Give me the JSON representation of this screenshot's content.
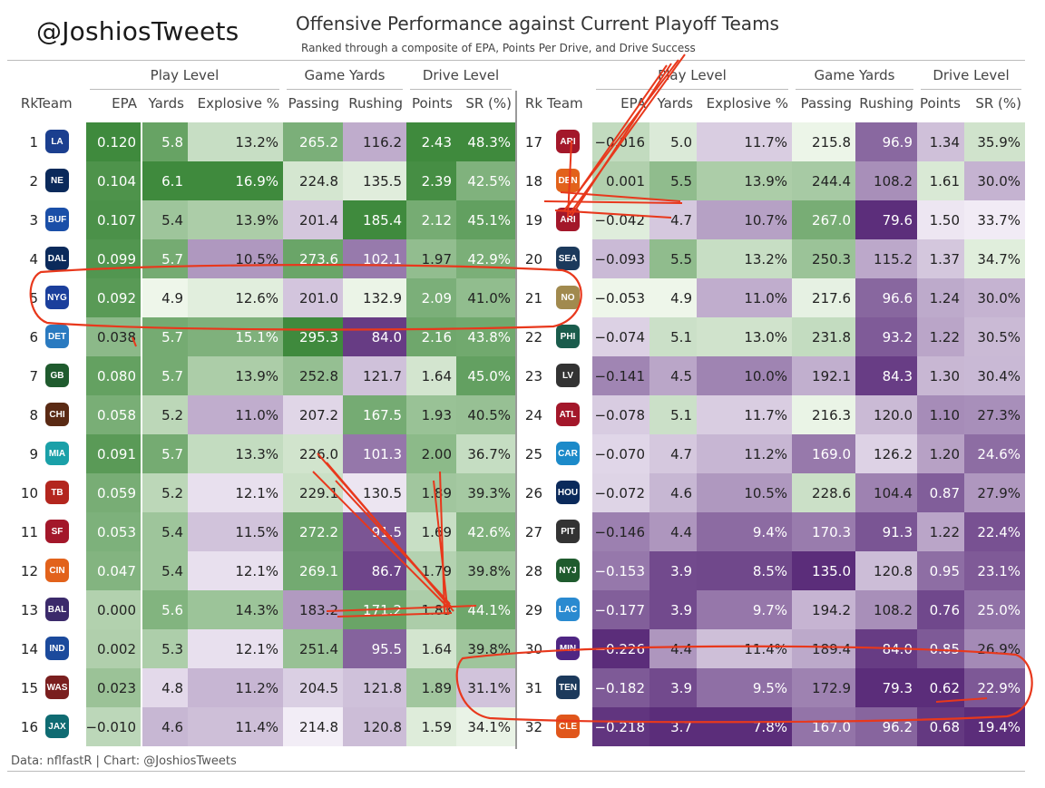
{
  "header": {
    "handle": "@JoshiosTweets",
    "title": "Offensive Performance against Current Playoff Teams",
    "subtitle": "Ranked through a composite of EPA, Points Per Drive, and Drive Success"
  },
  "footer": "Data: nflfastR | Chart: @JoshiosTweets",
  "colors": {
    "green_dark": "#3f8a3d",
    "green_light": "#eef6ea",
    "purple_dark": "#5b2d7a",
    "purple_light": "#f3eef7",
    "annotation": "#e8381c"
  },
  "chart_data": {
    "type": "table",
    "column_groups": [
      {
        "label": "Play Level",
        "columns": [
          "EPA",
          "Yards",
          "Explosive %"
        ]
      },
      {
        "label": "Game Yards",
        "columns": [
          "Passing",
          "Rushing"
        ]
      },
      {
        "label": "Drive Level",
        "columns": [
          "Points",
          "SR (%)"
        ]
      }
    ],
    "columns": [
      "Rk",
      "Team",
      "EPA",
      "Yards",
      "Explosive %",
      "Passing",
      "Rushing",
      "Points",
      "SR (%)"
    ],
    "rows": [
      {
        "rk": "1",
        "team": "LA",
        "epa": "0.120",
        "yards": "5.8",
        "explosive": "13.2%",
        "passing": "265.2",
        "rushing": "116.2",
        "points": "2.43",
        "sr": "48.3%"
      },
      {
        "rk": "2",
        "team": "NE",
        "epa": "0.104",
        "yards": "6.1",
        "explosive": "16.9%",
        "passing": "224.8",
        "rushing": "135.5",
        "points": "2.39",
        "sr": "42.5%"
      },
      {
        "rk": "3",
        "team": "BUF",
        "epa": "0.107",
        "yards": "5.4",
        "explosive": "13.9%",
        "passing": "201.4",
        "rushing": "185.4",
        "points": "2.12",
        "sr": "45.1%"
      },
      {
        "rk": "4",
        "team": "DAL",
        "epa": "0.099",
        "yards": "5.7",
        "explosive": "10.5%",
        "passing": "273.6",
        "rushing": "102.1",
        "points": "1.97",
        "sr": "42.9%"
      },
      {
        "rk": "5",
        "team": "NYG",
        "epa": "0.092",
        "yards": "4.9",
        "explosive": "12.6%",
        "passing": "201.0",
        "rushing": "132.9",
        "points": "2.09",
        "sr": "41.0%"
      },
      {
        "rk": "6",
        "team": "DET",
        "epa": "0.038",
        "yards": "5.7",
        "explosive": "15.1%",
        "passing": "295.3",
        "rushing": "84.0",
        "points": "2.16",
        "sr": "43.8%"
      },
      {
        "rk": "7",
        "team": "GB",
        "epa": "0.080",
        "yards": "5.7",
        "explosive": "13.9%",
        "passing": "252.8",
        "rushing": "121.7",
        "points": "1.64",
        "sr": "45.0%"
      },
      {
        "rk": "8",
        "team": "CHI",
        "epa": "0.058",
        "yards": "5.2",
        "explosive": "11.0%",
        "passing": "207.2",
        "rushing": "167.5",
        "points": "1.93",
        "sr": "40.5%"
      },
      {
        "rk": "9",
        "team": "MIA",
        "epa": "0.091",
        "yards": "5.7",
        "explosive": "13.3%",
        "passing": "226.0",
        "rushing": "101.3",
        "points": "2.00",
        "sr": "36.7%"
      },
      {
        "rk": "10",
        "team": "TB",
        "epa": "0.059",
        "yards": "5.2",
        "explosive": "12.1%",
        "passing": "229.1",
        "rushing": "130.5",
        "points": "1.89",
        "sr": "39.3%"
      },
      {
        "rk": "11",
        "team": "SF",
        "epa": "0.053",
        "yards": "5.4",
        "explosive": "11.5%",
        "passing": "272.2",
        "rushing": "91.5",
        "points": "1.69",
        "sr": "42.6%"
      },
      {
        "rk": "12",
        "team": "CIN",
        "epa": "0.047",
        "yards": "5.4",
        "explosive": "12.1%",
        "passing": "269.1",
        "rushing": "86.7",
        "points": "1.79",
        "sr": "39.8%"
      },
      {
        "rk": "13",
        "team": "BAL",
        "epa": "0.000",
        "yards": "5.6",
        "explosive": "14.3%",
        "passing": "183.2",
        "rushing": "171.2",
        "points": "1.83",
        "sr": "44.1%"
      },
      {
        "rk": "14",
        "team": "IND",
        "epa": "0.002",
        "yards": "5.3",
        "explosive": "12.1%",
        "passing": "251.4",
        "rushing": "95.5",
        "points": "1.64",
        "sr": "39.8%"
      },
      {
        "rk": "15",
        "team": "WAS",
        "epa": "0.023",
        "yards": "4.8",
        "explosive": "11.2%",
        "passing": "204.5",
        "rushing": "121.8",
        "points": "1.89",
        "sr": "31.1%"
      },
      {
        "rk": "16",
        "team": "JAX",
        "epa": "−0.010",
        "yards": "4.6",
        "explosive": "11.4%",
        "passing": "214.8",
        "rushing": "120.8",
        "points": "1.59",
        "sr": "34.1%"
      },
      {
        "rk": "17",
        "team": "ARI",
        "epa": "−0.016",
        "yards": "5.0",
        "explosive": "11.7%",
        "passing": "215.8",
        "rushing": "96.9",
        "points": "1.34",
        "sr": "35.9%"
      },
      {
        "rk": "18",
        "team": "DEN",
        "epa": "0.001",
        "yards": "5.5",
        "explosive": "13.9%",
        "passing": "244.4",
        "rushing": "108.2",
        "points": "1.61",
        "sr": "30.0%"
      },
      {
        "rk": "19",
        "team": "ARI",
        "epa": "−0.042",
        "yards": "4.7",
        "explosive": "10.7%",
        "passing": "267.0",
        "rushing": "79.6",
        "points": "1.50",
        "sr": "33.7%"
      },
      {
        "rk": "20",
        "team": "SEA",
        "epa": "−0.093",
        "yards": "5.5",
        "explosive": "13.2%",
        "passing": "250.3",
        "rushing": "115.2",
        "points": "1.37",
        "sr": "34.7%"
      },
      {
        "rk": "21",
        "team": "NO",
        "epa": "−0.053",
        "yards": "4.9",
        "explosive": "11.0%",
        "passing": "217.6",
        "rushing": "96.6",
        "points": "1.24",
        "sr": "30.0%"
      },
      {
        "rk": "22",
        "team": "PHI",
        "epa": "−0.074",
        "yards": "5.1",
        "explosive": "13.0%",
        "passing": "231.8",
        "rushing": "93.2",
        "points": "1.22",
        "sr": "30.5%"
      },
      {
        "rk": "23",
        "team": "LV",
        "epa": "−0.141",
        "yards": "4.5",
        "explosive": "10.0%",
        "passing": "192.1",
        "rushing": "84.3",
        "points": "1.30",
        "sr": "30.4%"
      },
      {
        "rk": "24",
        "team": "ATL",
        "epa": "−0.078",
        "yards": "5.1",
        "explosive": "11.7%",
        "passing": "216.3",
        "rushing": "120.0",
        "points": "1.10",
        "sr": "27.3%"
      },
      {
        "rk": "25",
        "team": "CAR",
        "epa": "−0.070",
        "yards": "4.7",
        "explosive": "11.2%",
        "passing": "169.0",
        "rushing": "126.2",
        "points": "1.20",
        "sr": "24.6%"
      },
      {
        "rk": "26",
        "team": "HOU",
        "epa": "−0.072",
        "yards": "4.6",
        "explosive": "10.5%",
        "passing": "228.6",
        "rushing": "104.4",
        "points": "0.87",
        "sr": "27.9%"
      },
      {
        "rk": "27",
        "team": "PIT",
        "epa": "−0.146",
        "yards": "4.4",
        "explosive": "9.4%",
        "passing": "170.3",
        "rushing": "91.3",
        "points": "1.22",
        "sr": "22.4%"
      },
      {
        "rk": "28",
        "team": "NYJ",
        "epa": "−0.153",
        "yards": "3.9",
        "explosive": "8.5%",
        "passing": "135.0",
        "rushing": "120.8",
        "points": "0.95",
        "sr": "23.1%"
      },
      {
        "rk": "29",
        "team": "LAC",
        "epa": "−0.177",
        "yards": "3.9",
        "explosive": "9.7%",
        "passing": "194.2",
        "rushing": "108.2",
        "points": "0.76",
        "sr": "25.0%"
      },
      {
        "rk": "30",
        "team": "MIN",
        "epa": "−0.226",
        "yards": "4.4",
        "explosive": "11.4%",
        "passing": "189.4",
        "rushing": "84.0",
        "points": "0.85",
        "sr": "26.9%"
      },
      {
        "rk": "31",
        "team": "TEN",
        "epa": "−0.182",
        "yards": "3.9",
        "explosive": "9.5%",
        "passing": "172.9",
        "rushing": "79.3",
        "points": "0.62",
        "sr": "22.9%"
      },
      {
        "rk": "32",
        "team": "CLE",
        "epa": "−0.218",
        "yards": "3.7",
        "explosive": "7.8%",
        "passing": "167.0",
        "rushing": "96.2",
        "points": "0.68",
        "sr": "19.4%"
      }
    ],
    "team_logo_icons": {
      "LA": {
        "icon": "rams-horn-icon",
        "color": "#1b3f8f"
      },
      "NE": {
        "icon": "patriots-icon",
        "color": "#0b2a5b"
      },
      "BUF": {
        "icon": "bills-buffalo-icon",
        "color": "#1a4fa8"
      },
      "DAL": {
        "icon": "cowboys-star-icon",
        "color": "#0b2a5b"
      },
      "NYG": {
        "icon": "giants-ny-icon",
        "color": "#1b3f9c"
      },
      "DET": {
        "icon": "lions-icon",
        "color": "#2a7ac0"
      },
      "GB": {
        "icon": "packers-g-icon",
        "color": "#1f5b2e"
      },
      "CHI": {
        "icon": "bears-icon",
        "color": "#5a2a14"
      },
      "MIA": {
        "icon": "dolphins-icon",
        "color": "#1aa0a8"
      },
      "TB": {
        "icon": "buccaneers-flag-icon",
        "color": "#b3261e"
      },
      "SF": {
        "icon": "49ers-icon",
        "color": "#a3172a"
      },
      "CIN": {
        "icon": "bengals-icon",
        "color": "#e2621b"
      },
      "BAL": {
        "icon": "ravens-icon",
        "color": "#3b2a6b"
      },
      "IND": {
        "icon": "colts-horseshoe-icon",
        "color": "#1b4a9c"
      },
      "WAS": {
        "icon": "commanders-w-icon",
        "color": "#7a1f1f"
      },
      "JAX": {
        "icon": "jaguars-icon",
        "color": "#0f6b72"
      },
      "ARI": {
        "icon": "cardinals-icon",
        "color": "#a3172a"
      },
      "DEN": {
        "icon": "broncos-icon",
        "color": "#e2621b"
      },
      "SEA": {
        "icon": "seahawks-icon",
        "color": "#1c3a5c"
      },
      "NO": {
        "icon": "saints-fleur-icon",
        "color": "#a18a4e"
      },
      "PHI": {
        "icon": "eagles-icon",
        "color": "#1a5c4c"
      },
      "LV": {
        "icon": "raiders-shield-icon",
        "color": "#333333"
      },
      "ATL": {
        "icon": "falcons-icon",
        "color": "#a3172a"
      },
      "CAR": {
        "icon": "panthers-icon",
        "color": "#1c8ac9"
      },
      "HOU": {
        "icon": "texans-icon",
        "color": "#0b2a5b"
      },
      "PIT": {
        "icon": "steelers-icon",
        "color": "#333333"
      },
      "NYJ": {
        "icon": "jets-icon",
        "color": "#1f5b2e"
      },
      "LAC": {
        "icon": "chargers-bolt-icon",
        "color": "#2a8ad0"
      },
      "MIN": {
        "icon": "vikings-icon",
        "color": "#4f2683"
      },
      "TEN": {
        "icon": "titans-icon",
        "color": "#1c3a5c"
      },
      "CLE": {
        "icon": "browns-helmet-icon",
        "color": "#e0561b"
      }
    }
  }
}
